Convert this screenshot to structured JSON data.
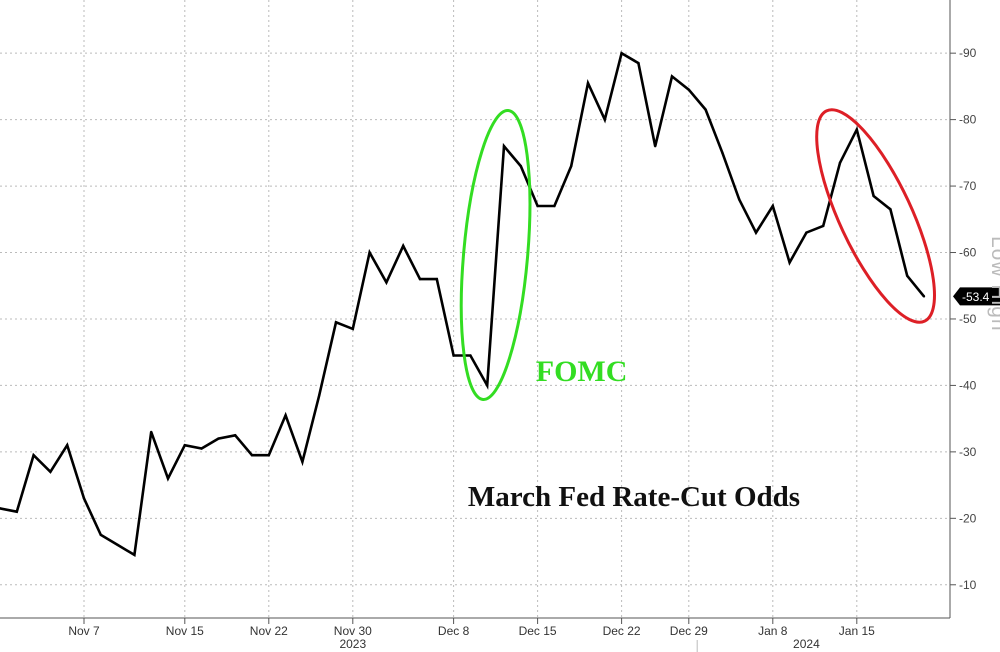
{
  "chart_data": {
    "type": "line",
    "title": "March Fed Rate-Cut Odds",
    "xlabel": "",
    "ylabel": "",
    "ylim": [
      5,
      98
    ],
    "grid": true,
    "y_ticks": [
      10,
      20,
      30,
      40,
      50,
      60,
      70,
      80,
      90
    ],
    "x_ticks": [
      {
        "label": "Nov 7",
        "x": "2023-11-07"
      },
      {
        "label": "Nov 15",
        "x": "2023-11-15"
      },
      {
        "label": "Nov 22",
        "x": "2023-11-22"
      },
      {
        "label": "Nov 30",
        "x": "2023-11-30"
      },
      {
        "label": "Dec 8",
        "x": "2023-12-08"
      },
      {
        "label": "Dec 15",
        "x": "2023-12-15"
      },
      {
        "label": "Dec 22",
        "x": "2023-12-22"
      },
      {
        "label": "Dec 29",
        "x": "2023-12-29"
      },
      {
        "label": "Jan 8",
        "x": "2024-01-08"
      },
      {
        "label": "Jan 15",
        "x": "2024-01-15"
      }
    ],
    "years": [
      {
        "label": "2023",
        "x": "2023-11-30"
      },
      {
        "label": "2024",
        "x": "2024-01-10"
      }
    ],
    "last_value_label": "53.4",
    "side_label": "Low High",
    "annotations": [
      {
        "text": "FOMC",
        "color": "#33dd22"
      }
    ],
    "colors": {
      "line": "#000000",
      "fomc": "#33dd22",
      "recent": "#dd1f26",
      "grid": "#bbbbbb",
      "axis": "#555555",
      "value_box": "#000000",
      "value_text": "#ffffff",
      "side_label": "#bbbbbb"
    },
    "series": [
      {
        "x": [
          "2023-10-31",
          "2023-11-01",
          "2023-11-02",
          "2023-11-03",
          "2023-11-06",
          "2023-11-07",
          "2023-11-08",
          "2023-11-09",
          "2023-11-10",
          "2023-11-13",
          "2023-11-14",
          "2023-11-15",
          "2023-11-16",
          "2023-11-17",
          "2023-11-20",
          "2023-11-21",
          "2023-11-22",
          "2023-11-24",
          "2023-11-27",
          "2023-11-28",
          "2023-11-29",
          "2023-11-30",
          "2023-12-01",
          "2023-12-04",
          "2023-12-05",
          "2023-12-06",
          "2023-12-07",
          "2023-12-08",
          "2023-12-11",
          "2023-12-12",
          "2023-12-13",
          "2023-12-14",
          "2023-12-15",
          "2023-12-18",
          "2023-12-19",
          "2023-12-20",
          "2023-12-21",
          "2023-12-22",
          "2023-12-26",
          "2023-12-27",
          "2023-12-28",
          "2023-12-29",
          "2024-01-02",
          "2024-01-03",
          "2024-01-04",
          "2024-01-05",
          "2024-01-08",
          "2024-01-09",
          "2024-01-10",
          "2024-01-11",
          "2024-01-12",
          "2024-01-15",
          "2024-01-16",
          "2024-01-17",
          "2024-01-18",
          "2024-01-19"
        ],
        "values": [
          21.5,
          21,
          29.5,
          27,
          31,
          23,
          17.5,
          16,
          14.5,
          33,
          26,
          31,
          30.5,
          32,
          32.5,
          29.5,
          29.5,
          35.5,
          28.5,
          38.5,
          49.5,
          48.5,
          60,
          55.5,
          61,
          56,
          56,
          44.5,
          44.5,
          40,
          76,
          73,
          67,
          67,
          73,
          85.5,
          80,
          90,
          88.5,
          76,
          86.5,
          84.5,
          81.5,
          75,
          68,
          63,
          67,
          58.5,
          63,
          64,
          73.5,
          78.5,
          68.5,
          66.5,
          56.5,
          53.4
        ]
      }
    ]
  }
}
